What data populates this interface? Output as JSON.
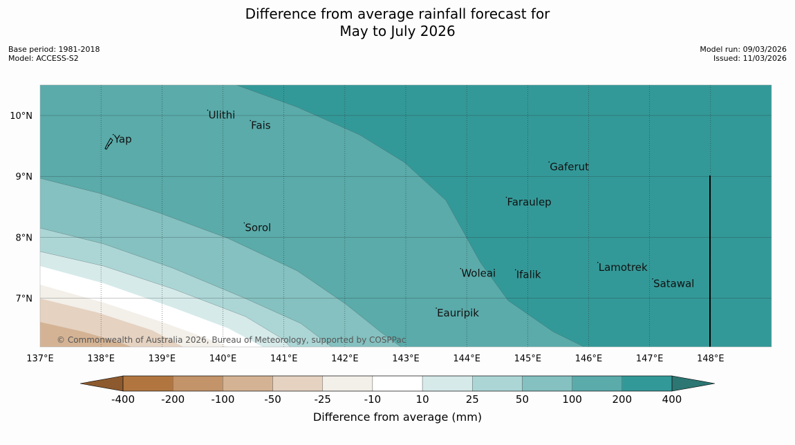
{
  "title": {
    "line1": "Difference from average rainfall forecast for",
    "line2": "May to July 2026"
  },
  "meta_left": {
    "base_period": "Base period: 1981-2018",
    "model": "Model: ACCESS-S2"
  },
  "meta_right": {
    "model_run": "Model run: 09/03/2026",
    "issued": "Issued: 11/03/2026"
  },
  "map": {
    "lon_range": [
      137.0,
      149.0
    ],
    "lat_range": [
      6.2,
      10.5
    ],
    "lon_ticks": [
      "137°E",
      "138°E",
      "139°E",
      "140°E",
      "141°E",
      "142°E",
      "143°E",
      "144°E",
      "145°E",
      "146°E",
      "147°E",
      "148°E"
    ],
    "lat_ticks": [
      "10°N",
      "9°N",
      "8°N",
      "7°N"
    ],
    "copyright": "© Commonwealth of Australia 2026, Bureau of Meteorology, supported by COSPPac",
    "places": [
      {
        "name": "Yap",
        "lon": 138.2,
        "lat": 9.55
      },
      {
        "name": "Ulithi",
        "lon": 139.75,
        "lat": 9.95
      },
      {
        "name": "Fais",
        "lon": 140.45,
        "lat": 9.78
      },
      {
        "name": "Gaferut",
        "lon": 145.35,
        "lat": 9.1
      },
      {
        "name": "Faraulep",
        "lon": 144.65,
        "lat": 8.52
      },
      {
        "name": "Sorol",
        "lon": 140.35,
        "lat": 8.1
      },
      {
        "name": "Woleai",
        "lon": 143.9,
        "lat": 7.35
      },
      {
        "name": "Ifalik",
        "lon": 144.8,
        "lat": 7.33
      },
      {
        "name": "Lamotrek",
        "lon": 146.15,
        "lat": 7.45
      },
      {
        "name": "Satawal",
        "lon": 147.05,
        "lat": 7.18
      },
      {
        "name": "Eauripik",
        "lon": 143.5,
        "lat": 6.7
      }
    ]
  },
  "colorbar": {
    "label": "Difference from average (mm)",
    "tick_labels": [
      "-400",
      "-200",
      "-100",
      "-50",
      "-25",
      "-10",
      "10",
      "25",
      "50",
      "100",
      "200",
      "400"
    ],
    "colors": {
      "under": "#8c5a2e",
      "bin1": "#b1763f",
      "bin2": "#c39469",
      "bin3": "#d4b394",
      "bin4": "#e5d2c1",
      "bin5": "#f3efe9",
      "bin6": "#ffffff",
      "bin7": "#d6eaea",
      "bin8": "#acd6d6",
      "bin9": "#84c1c0",
      "bin10": "#5aabaa",
      "bin11": "#339998",
      "over": "#2c7673"
    }
  }
}
